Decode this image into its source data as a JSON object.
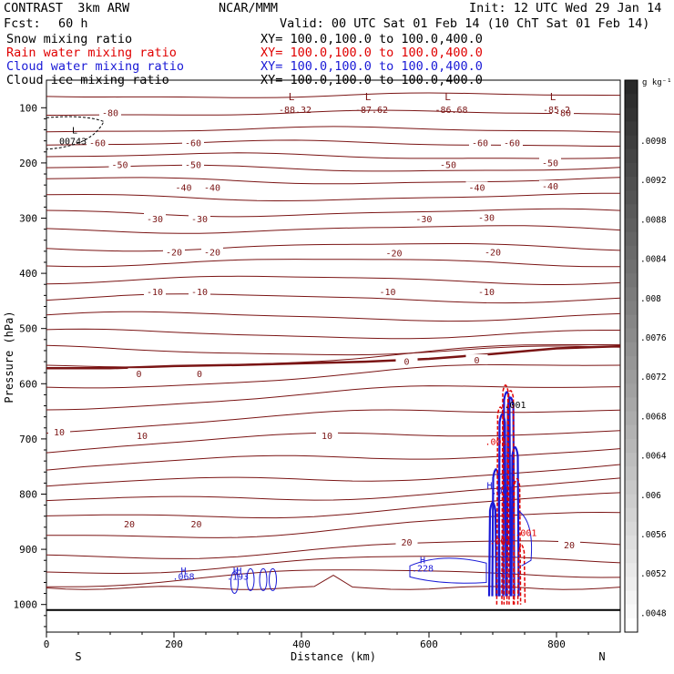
{
  "header": {
    "model": "CONTRAST  3km ARW",
    "center": "NCAR/MMM",
    "init": "Init: 12 UTC Wed 29 Jan 14",
    "fcst_label": "Fcst:",
    "fcst_value": "60 h",
    "valid": "Valid: 00 UTC Sat 01 Feb 14 (10 ChT Sat 01 Feb 14)"
  },
  "fields": [
    {
      "name": "Snow mixing ratio",
      "xy": "XY= 100.0,100.0 to 100.0,400.0",
      "color": "#000000"
    },
    {
      "name": "Rain water mixing ratio",
      "xy": "XY= 100.0,100.0 to 100.0,400.0",
      "color": "#e00000"
    },
    {
      "name": "Cloud water mixing ratio",
      "xy": "XY= 100.0,100.0 to 100.0,400.0",
      "color": "#1a1ad6"
    },
    {
      "name": "Cloud ice mixing ratio",
      "xy": "XY= 100.0,100.0 to 100.0,400.0",
      "color": "#000000"
    }
  ],
  "colorbar": {
    "unit": "g kg⁻¹",
    "labels": [
      ".0098",
      ".0092",
      ".0088",
      ".0084",
      ".008",
      ".0076",
      ".0072",
      ".0068",
      ".0064",
      ".006",
      ".0056",
      ".0052",
      ".0048"
    ]
  },
  "chart_data": {
    "type": "contour-cross-section",
    "xlabel": "Distance (km)",
    "ylabel": "Pressure (hPa)",
    "x_ticks": [
      0,
      200,
      400,
      600,
      800
    ],
    "y_ticks": [
      100,
      200,
      300,
      400,
      500,
      600,
      700,
      800,
      900,
      1000
    ],
    "xlim": [
      0,
      900
    ],
    "ylim": [
      1050,
      50
    ],
    "x_end_labels": {
      "left": "S",
      "right": "N"
    },
    "temperature_contours": {
      "color": "#7a1414",
      "zero_isotherm": [
        [
          0,
          572
        ],
        [
          100,
          572
        ],
        [
          200,
          568
        ],
        [
          300,
          566
        ],
        [
          400,
          563
        ],
        [
          500,
          560
        ],
        [
          600,
          555
        ],
        [
          700,
          546
        ],
        [
          800,
          536
        ],
        [
          900,
          532
        ]
      ],
      "labels": [
        {
          "text": "-80",
          "x": 100,
          "p": 112
        },
        {
          "text": "-80",
          "x": 810,
          "p": 112
        },
        {
          "text": "-60",
          "x": 80,
          "p": 166
        },
        {
          "text": "-60",
          "x": 230,
          "p": 166
        },
        {
          "text": "-60",
          "x": 680,
          "p": 166
        },
        {
          "text": "-60",
          "x": 730,
          "p": 166
        },
        {
          "text": "-50",
          "x": 115,
          "p": 206
        },
        {
          "text": "-50",
          "x": 230,
          "p": 206
        },
        {
          "text": "-50",
          "x": 630,
          "p": 206
        },
        {
          "text": "-50",
          "x": 790,
          "p": 203
        },
        {
          "text": "-40",
          "x": 215,
          "p": 247
        },
        {
          "text": "-40",
          "x": 260,
          "p": 247
        },
        {
          "text": "-40",
          "x": 675,
          "p": 247
        },
        {
          "text": "-40",
          "x": 790,
          "p": 245
        },
        {
          "text": "-30",
          "x": 170,
          "p": 304
        },
        {
          "text": "-30",
          "x": 240,
          "p": 304
        },
        {
          "text": "-30",
          "x": 592,
          "p": 304
        },
        {
          "text": "-30",
          "x": 690,
          "p": 302
        },
        {
          "text": "-20",
          "x": 200,
          "p": 364
        },
        {
          "text": "-20",
          "x": 260,
          "p": 364
        },
        {
          "text": "-20",
          "x": 545,
          "p": 366
        },
        {
          "text": "-20",
          "x": 700,
          "p": 364
        },
        {
          "text": "-10",
          "x": 170,
          "p": 436
        },
        {
          "text": "-10",
          "x": 240,
          "p": 436
        },
        {
          "text": "-10",
          "x": 535,
          "p": 436
        },
        {
          "text": "-10",
          "x": 690,
          "p": 436
        },
        {
          "text": "0",
          "x": 145,
          "p": 585
        },
        {
          "text": "0",
          "x": 240,
          "p": 585
        },
        {
          "text": "0",
          "x": 565,
          "p": 562
        },
        {
          "text": "0",
          "x": 675,
          "p": 560
        },
        {
          "text": "10",
          "x": 20,
          "p": 690
        },
        {
          "text": "10",
          "x": 150,
          "p": 697
        },
        {
          "text": "10",
          "x": 440,
          "p": 697
        },
        {
          "text": "20",
          "x": 130,
          "p": 857
        },
        {
          "text": "20",
          "x": 235,
          "p": 857
        },
        {
          "text": "20",
          "x": 565,
          "p": 890
        },
        {
          "text": "20",
          "x": 820,
          "p": 895
        }
      ],
      "lows": [
        {
          "text": "-88.32",
          "x": 390,
          "p": 93
        },
        {
          "text": "-87.62",
          "x": 510,
          "p": 93
        },
        {
          "text": "-86.68",
          "x": 635,
          "p": 93
        },
        {
          "text": "-85.2",
          "x": 800,
          "p": 93
        }
      ]
    },
    "minimum_marker": {
      "letter": "L",
      "value": "00743",
      "x": 40,
      "p": 153
    },
    "cloud_water_labels": [
      {
        "text": ".068",
        "x": 215,
        "p": 955
      },
      {
        "text": ".193",
        "x": 300,
        "p": 955
      },
      {
        "text": ".228",
        "x": 590,
        "p": 940
      },
      {
        "text": ".001",
        "x": 715,
        "p": 800
      }
    ],
    "rain_water_labels": [
      {
        "text": ".001",
        "x": 705,
        "p": 711
      },
      {
        "text": ".001",
        "x": 752,
        "p": 876
      },
      {
        "text": ".001",
        "x": 712,
        "p": 891
      }
    ],
    "snow_labels": [
      {
        "text": ".001",
        "x": 735,
        "p": 644
      }
    ]
  }
}
